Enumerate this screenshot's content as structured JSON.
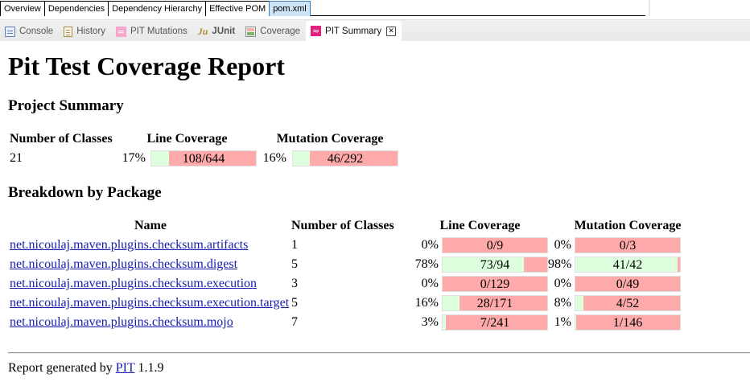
{
  "editor_tabs": [
    {
      "label": "Overview",
      "active": false
    },
    {
      "label": "Dependencies",
      "active": false
    },
    {
      "label": "Dependency Hierarchy",
      "active": false
    },
    {
      "label": "Effective POM",
      "active": false
    },
    {
      "label": "pom.xml",
      "active": true
    }
  ],
  "view_tabs": [
    {
      "label": "Console",
      "icon": "console-icon"
    },
    {
      "label": "History",
      "icon": "history-icon"
    },
    {
      "label": "PIT Mutations",
      "icon": "pit-mutations-icon"
    },
    {
      "label": "JUnit",
      "icon": "junit-icon"
    },
    {
      "label": "Coverage",
      "icon": "coverage-icon"
    },
    {
      "label": "PIT Summary",
      "icon": "pit-summary-icon",
      "active": true
    }
  ],
  "report": {
    "title": "Pit Test Coverage Report",
    "project_summary_heading": "Project Summary",
    "breakdown_heading": "Breakdown by Package",
    "summary": {
      "headers": {
        "classes": "Number of Classes",
        "line": "Line Coverage",
        "mutation": "Mutation Coverage"
      },
      "classes": "21",
      "line_pct": "17%",
      "line_ratio": "108/644",
      "line_fraction": 0.17,
      "mutation_pct": "16%",
      "mutation_ratio": "46/292",
      "mutation_fraction": 0.16
    },
    "packages": {
      "headers": {
        "name": "Name",
        "classes": "Number of Classes",
        "line": "Line Coverage",
        "mutation": "Mutation Coverage"
      },
      "rows": [
        {
          "name": "net.nicoulaj.maven.plugins.checksum.artifacts",
          "classes": "1",
          "line_pct": "0%",
          "line_ratio": "0/9",
          "line_fraction": 0.0,
          "mutation_pct": "0%",
          "mutation_ratio": "0/3",
          "mutation_fraction": 0.0
        },
        {
          "name": "net.nicoulaj.maven.plugins.checksum.digest",
          "classes": "5",
          "line_pct": "78%",
          "line_ratio": "73/94",
          "line_fraction": 0.78,
          "mutation_pct": "98%",
          "mutation_ratio": "41/42",
          "mutation_fraction": 0.98
        },
        {
          "name": "net.nicoulaj.maven.plugins.checksum.execution",
          "classes": "3",
          "line_pct": "0%",
          "line_ratio": "0/129",
          "line_fraction": 0.0,
          "mutation_pct": "0%",
          "mutation_ratio": "0/49",
          "mutation_fraction": 0.0
        },
        {
          "name": "net.nicoulaj.maven.plugins.checksum.execution.target",
          "classes": "5",
          "line_pct": "16%",
          "line_ratio": "28/171",
          "line_fraction": 0.16,
          "mutation_pct": "8%",
          "mutation_ratio": "4/52",
          "mutation_fraction": 0.08
        },
        {
          "name": "net.nicoulaj.maven.plugins.checksum.mojo",
          "classes": "7",
          "line_pct": "3%",
          "line_ratio": "7/241",
          "line_fraction": 0.03,
          "mutation_pct": "1%",
          "mutation_ratio": "1/146",
          "mutation_fraction": 0.01
        }
      ]
    },
    "footer": {
      "prefix": "Report generated by",
      "link": "PIT",
      "version": "1.1.9"
    }
  },
  "colors": {
    "covered": "#ddffdd",
    "uncovered": "#ffaaaa",
    "link": "#1a1aaf",
    "active_editor_tab": "#cde4f7"
  }
}
